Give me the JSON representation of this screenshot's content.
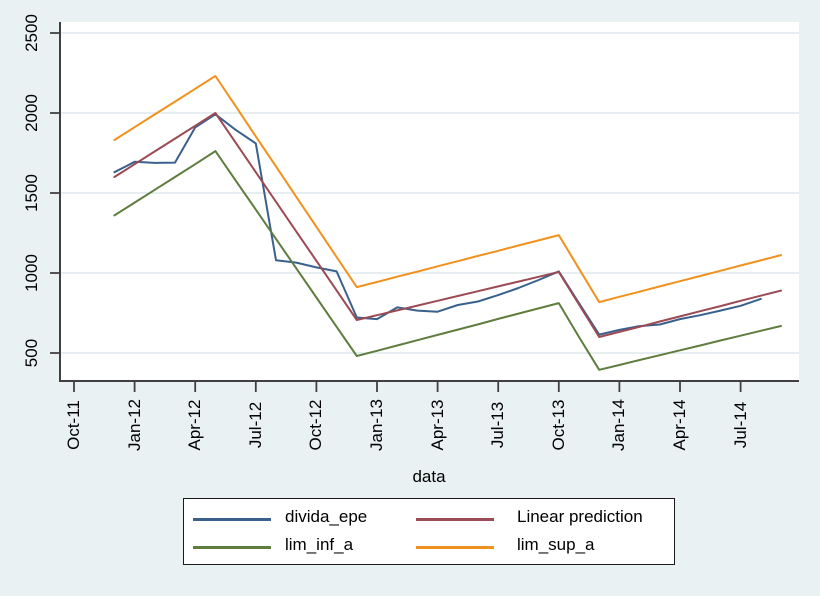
{
  "chart_data": {
    "type": "line",
    "title": "",
    "xlabel": "data",
    "ylabel": "",
    "grid": "horizontal",
    "legend_position": "bottom-boxed",
    "ylim": [
      325,
      2570
    ],
    "y_tick_values": [
      500,
      1000,
      1500,
      2000,
      2500
    ],
    "x_ticks": [
      {
        "label": "Oct-11",
        "month_offset": 0
      },
      {
        "label": "Jan-12",
        "month_offset": 3
      },
      {
        "label": "Apr-12",
        "month_offset": 6
      },
      {
        "label": "Jul-12",
        "month_offset": 9
      },
      {
        "label": "Oct-12",
        "month_offset": 12
      },
      {
        "label": "Jan-13",
        "month_offset": 15
      },
      {
        "label": "Apr-13",
        "month_offset": 18
      },
      {
        "label": "Jul-13",
        "month_offset": 21
      },
      {
        "label": "Oct-13",
        "month_offset": 24
      },
      {
        "label": "Jan-14",
        "month_offset": 27
      },
      {
        "label": "Apr-14",
        "month_offset": 30
      },
      {
        "label": "Jul-14",
        "month_offset": 33
      }
    ],
    "months": [
      "Dec-11",
      "Jan-12",
      "Feb-12",
      "Mar-12",
      "Apr-12",
      "May-12",
      "Jun-12",
      "Jul-12",
      "Aug-12",
      "Sep-12",
      "Oct-12",
      "Nov-12",
      "Dec-12",
      "Jan-13",
      "Feb-13",
      "Mar-13",
      "Apr-13",
      "May-13",
      "Jun-13",
      "Jul-13",
      "Aug-13",
      "Sep-13",
      "Oct-13",
      "Nov-13",
      "Dec-13",
      "Jan-14",
      "Feb-14",
      "Mar-14",
      "Apr-14",
      "May-14",
      "Jun-14",
      "Jul-14",
      "Aug-14",
      "Sep-14"
    ],
    "start_month_offset": 2,
    "series": [
      {
        "name": "divida_epe",
        "color": "#3a618e",
        "values": [
          1630,
          1695,
          1688,
          1690,
          1910,
          1992,
          1895,
          1810,
          1080,
          1065,
          1035,
          1010,
          722,
          712,
          785,
          765,
          758,
          800,
          822,
          862,
          906,
          956,
          1010,
          812,
          615,
          645,
          668,
          678,
          712,
          736,
          765,
          795,
          838
        ]
      },
      {
        "name": "Linear prediction",
        "color": "#9c4a53",
        "values": [
          1600,
          1680,
          1760,
          1840,
          1920,
          2000,
          1815,
          1630,
          1445,
          1260,
          1076,
          891,
          706,
          736,
          766,
          796,
          826,
          856,
          886,
          916,
          946,
          976,
          1006,
          803,
          600,
          632,
          664,
          697,
          729,
          761,
          793,
          826,
          858,
          890
        ]
      },
      {
        "name": "lim_inf_a",
        "color": "#5f7d3e",
        "values": [
          1360,
          1440,
          1520,
          1600,
          1680,
          1762,
          1579,
          1396,
          1213,
          1030,
          847,
          664,
          481,
          514,
          547,
          580,
          613,
          646,
          679,
          713,
          746,
          779,
          812,
          600,
          395,
          425,
          456,
          486,
          517,
          547,
          578,
          608,
          639,
          669
        ]
      },
      {
        "name": "lim_sup_a",
        "color": "#f0911e",
        "values": [
          1831,
          1911,
          1991,
          2071,
          2151,
          2231,
          2043,
          1854,
          1666,
          1477,
          1289,
          1100,
          912,
          944,
          977,
          1009,
          1042,
          1074,
          1107,
          1139,
          1172,
          1204,
          1237,
          1027,
          818,
          851,
          883,
          916,
          949,
          981,
          1014,
          1047,
          1079,
          1112
        ]
      }
    ]
  },
  "colors": {
    "background": "#eaf1f2",
    "plot_background": "#ffffff",
    "gridline": "#dde9ee",
    "axis": "#404040",
    "text": "#000000",
    "legend_border": "#1a1a1a"
  }
}
